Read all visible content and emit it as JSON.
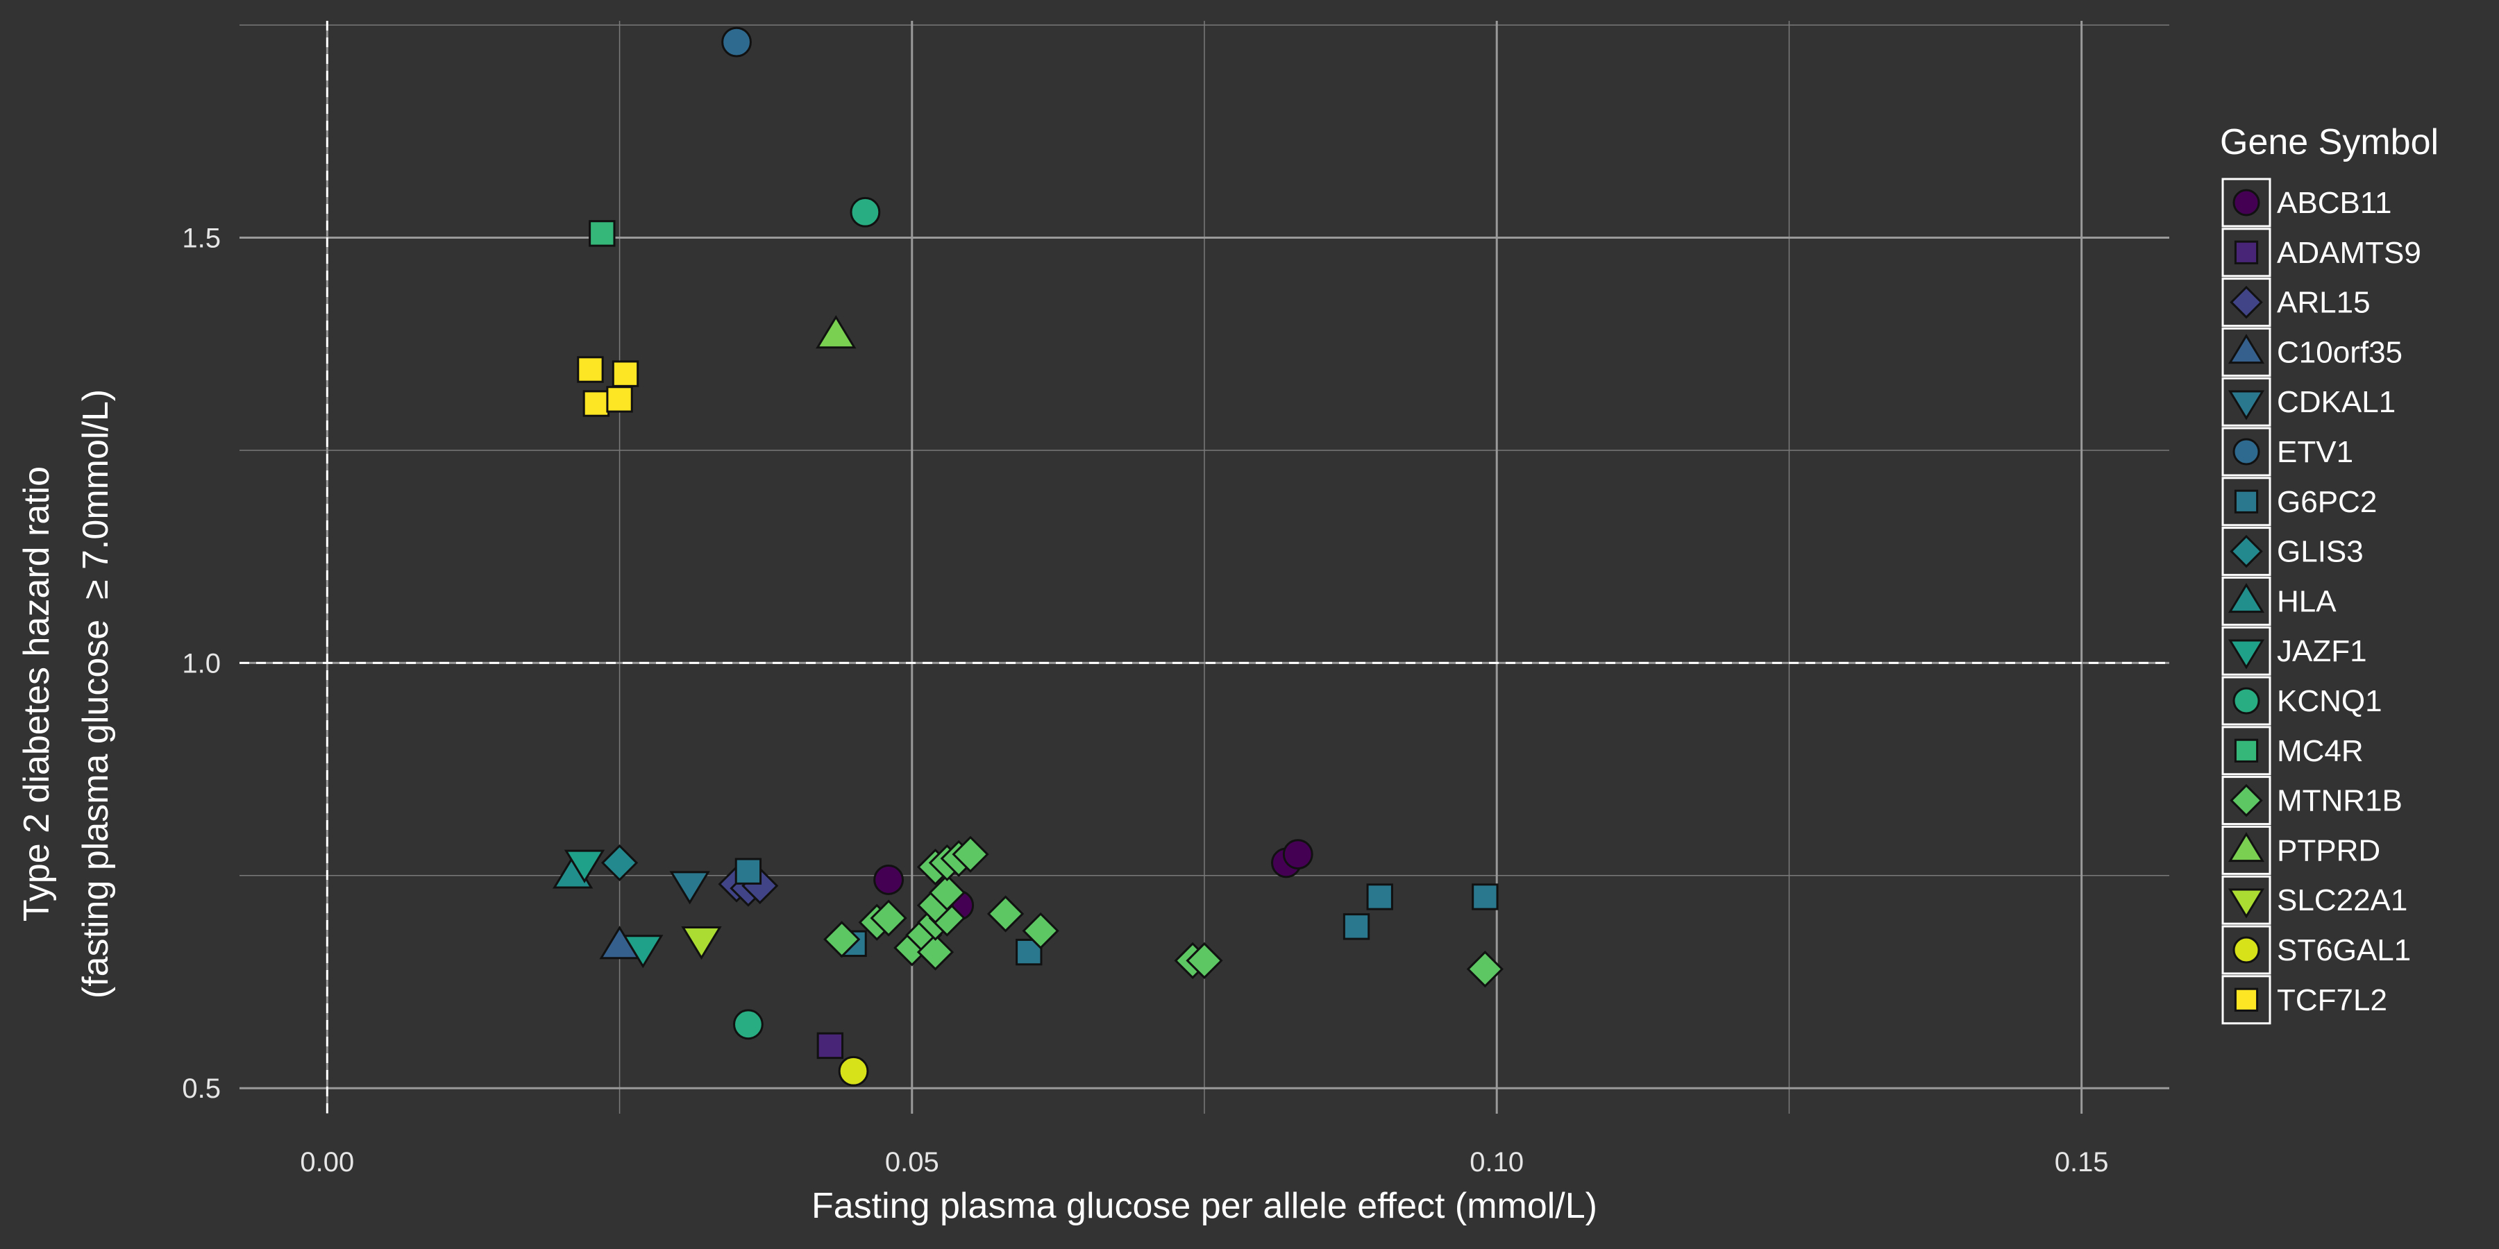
{
  "chart_data": {
    "type": "scatter",
    "xlabel": "Fasting plasma glucose per allele effect (mmol/L)",
    "ylabel_line1": "Type 2 diabetes hazard ratio",
    "ylabel_line2": "(fasting plasma glucose  ≥ 7.0mmol/L)",
    "xlim": [
      -0.0075,
      0.1575
    ],
    "ylim": [
      0.47,
      1.755
    ],
    "x_major_ticks": [
      0.0,
      0.05,
      0.1,
      0.15
    ],
    "x_tick_labels": [
      "0.00",
      "0.05",
      "0.10",
      "0.15"
    ],
    "y_major_ticks": [
      0.5,
      1.0,
      1.5
    ],
    "y_tick_labels": [
      "0.5",
      "1.0",
      "1.5"
    ],
    "x_minor_ticks": [
      0.025,
      0.075,
      0.125
    ],
    "y_minor_ticks": [
      0.75,
      1.25,
      1.75
    ],
    "reference_lines": {
      "x": 0,
      "y": 1.0,
      "style": "dashed"
    },
    "grid": true,
    "legend": {
      "title": "Gene Symbol",
      "placement": "right",
      "entries": [
        "ABCB11",
        "ADAMTS9",
        "ARL15",
        "C10orf35",
        "CDKAL1",
        "ETV1",
        "G6PC2",
        "GLIS3",
        "HLA",
        "JAZF1",
        "KCNQ1",
        "MC4R",
        "MTNR1B",
        "PTPRD",
        "SLC22A1",
        "ST6GAL1",
        "TCF7L2"
      ]
    },
    "series": [
      {
        "name": "ABCB11",
        "shape": "circle",
        "color": "#440154",
        "points": [
          [
            0.048,
            0.745
          ],
          [
            0.082,
            0.765
          ],
          [
            0.083,
            0.775
          ],
          [
            0.054,
            0.715
          ]
        ]
      },
      {
        "name": "ADAMTS9",
        "shape": "square",
        "color": "#482576",
        "points": [
          [
            0.043,
            0.55
          ]
        ]
      },
      {
        "name": "ARL15",
        "shape": "diamond",
        "color": "#414487",
        "points": [
          [
            0.035,
            0.74
          ],
          [
            0.036,
            0.735
          ],
          [
            0.037,
            0.738
          ]
        ]
      },
      {
        "name": "C10orf35",
        "shape": "triangle-up",
        "color": "#35608D",
        "points": [
          [
            0.025,
            0.667
          ]
        ]
      },
      {
        "name": "CDKAL1",
        "shape": "triangle-down",
        "color": "#2A788E",
        "points": [
          [
            0.031,
            0.74
          ]
        ]
      },
      {
        "name": "ETV1",
        "shape": "circle",
        "color": "#2E6A90",
        "points": [
          [
            0.035,
            1.73
          ]
        ]
      },
      {
        "name": "G6PC2",
        "shape": "square",
        "color": "#2A788E",
        "points": [
          [
            0.036,
            0.755
          ],
          [
            0.045,
            0.67
          ],
          [
            0.06,
            0.66
          ],
          [
            0.088,
            0.69
          ],
          [
            0.09,
            0.725
          ],
          [
            0.099,
            0.725
          ]
        ]
      },
      {
        "name": "GLIS3",
        "shape": "diamond",
        "color": "#23898E",
        "points": [
          [
            0.025,
            0.765
          ]
        ]
      },
      {
        "name": "HLA",
        "shape": "triangle-up",
        "color": "#21908C",
        "points": [
          [
            0.021,
            0.75
          ]
        ]
      },
      {
        "name": "JAZF1",
        "shape": "triangle-down",
        "color": "#1FA088",
        "points": [
          [
            0.022,
            0.765
          ],
          [
            0.027,
            0.665
          ]
        ]
      },
      {
        "name": "KCNQ1",
        "shape": "circle",
        "color": "#27AD81",
        "points": [
          [
            0.046,
            1.53
          ],
          [
            0.036,
            0.575
          ]
        ]
      },
      {
        "name": "MC4R",
        "shape": "square",
        "color": "#35B779",
        "points": [
          [
            0.0235,
            1.505
          ]
        ]
      },
      {
        "name": "MTNR1B",
        "shape": "diamond",
        "color": "#5DC863",
        "points": [
          [
            0.044,
            0.675
          ],
          [
            0.047,
            0.695
          ],
          [
            0.048,
            0.7
          ],
          [
            0.05,
            0.665
          ],
          [
            0.051,
            0.68
          ],
          [
            0.052,
            0.66
          ],
          [
            0.052,
            0.695
          ],
          [
            0.053,
            0.7
          ],
          [
            0.052,
            0.715
          ],
          [
            0.053,
            0.73
          ],
          [
            0.052,
            0.76
          ],
          [
            0.053,
            0.765
          ],
          [
            0.054,
            0.77
          ],
          [
            0.055,
            0.775
          ],
          [
            0.058,
            0.705
          ],
          [
            0.061,
            0.685
          ],
          [
            0.074,
            0.65
          ],
          [
            0.075,
            0.65
          ],
          [
            0.099,
            0.64
          ]
        ]
      },
      {
        "name": "PTPRD",
        "shape": "triangle-up",
        "color": "#7AD151",
        "points": [
          [
            0.0435,
            1.385
          ]
        ]
      },
      {
        "name": "SLC22A1",
        "shape": "triangle-down",
        "color": "#AADC32",
        "points": [
          [
            0.032,
            0.675
          ]
        ]
      },
      {
        "name": "ST6GAL1",
        "shape": "circle",
        "color": "#D8E219",
        "points": [
          [
            0.045,
            0.52
          ]
        ]
      },
      {
        "name": "TCF7L2",
        "shape": "square",
        "color": "#FDE725",
        "points": [
          [
            0.0225,
            1.345
          ],
          [
            0.023,
            1.305
          ],
          [
            0.025,
            1.31
          ],
          [
            0.0255,
            1.34
          ]
        ]
      }
    ]
  }
}
